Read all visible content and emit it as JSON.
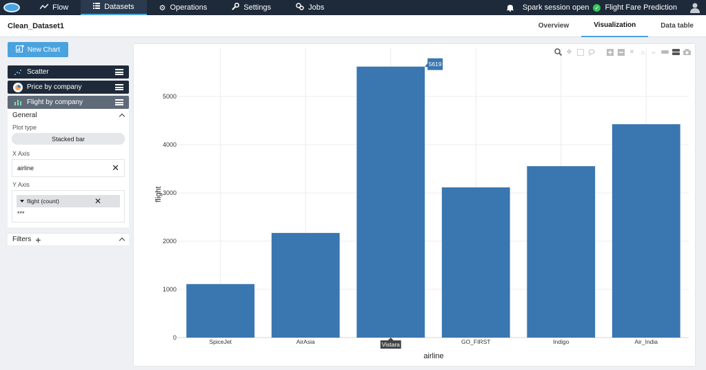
{
  "nav": {
    "items": [
      {
        "label": "Flow",
        "icon": "trend-icon"
      },
      {
        "label": "Datasets",
        "icon": "list-icon"
      },
      {
        "label": "Operations",
        "icon": "gear-icon"
      },
      {
        "label": "Settings",
        "icon": "wrench-icon"
      },
      {
        "label": "Jobs",
        "icon": "jobs-icon"
      }
    ],
    "session_status": "Spark session open",
    "project_name": "Flight Fare Prediction"
  },
  "header": {
    "dataset_title": "Clean_Dataset1",
    "tabs": [
      "Overview",
      "Visualization",
      "Data table"
    ],
    "active_tab": "Visualization"
  },
  "sidebar": {
    "new_chart_label": "New Chart",
    "charts": [
      {
        "label": "Scatter"
      },
      {
        "label": "Price by company"
      },
      {
        "label": "Flight by company"
      }
    ],
    "general_label": "General",
    "plot_type_label": "Plot type",
    "plot_type_value": "Stacked bar",
    "x_axis_label": "X Axis",
    "x_axis_value": "airline",
    "y_axis_label": "Y Axis",
    "y_axis_value": "flight (count)",
    "y_axis_more": "***",
    "filters_label": "Filters"
  },
  "colors": {
    "nav_bg": "#1e2a3a",
    "accent": "#4aa3df",
    "bar": "#3a76b0"
  },
  "chart_data": {
    "type": "bar",
    "categories": [
      "SpiceJet",
      "AirAsia",
      "Vistara",
      "GO_FIRST",
      "Indigo",
      "Air_India"
    ],
    "values": [
      1110,
      2170,
      5619,
      3115,
      3555,
      4425
    ],
    "xlabel": "airline",
    "ylabel": "flight",
    "ylim": [
      0,
      6000
    ],
    "yticks": [
      0,
      1000,
      2000,
      3000,
      4000,
      5000
    ],
    "hover_label": "5619",
    "hover_category": "Vistara",
    "grid": true
  }
}
